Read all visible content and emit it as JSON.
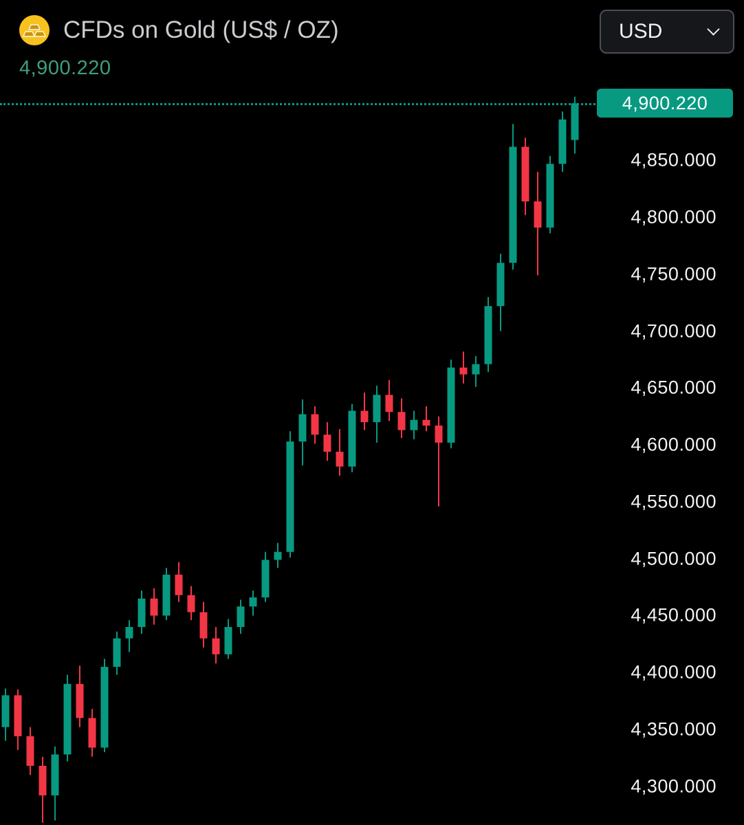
{
  "header": {
    "title": "CFDs on Gold (US$ / OZ)",
    "icon": "gold-bars-icon",
    "price_display": "4,900.220",
    "currency_selector": {
      "selected_option": "USD"
    }
  },
  "colors": {
    "background": "#000000",
    "up": "#089981",
    "down": "#f23645",
    "title_text": "#cacccf",
    "header_price_text": "#3f9e7d",
    "axis_text": "#f1f2f4",
    "badge_background": "#089981",
    "badge_text": "#ffffff",
    "icon_yellow": "#f7c21e"
  },
  "price_scale": {
    "current_price_label": "4,900.220",
    "ticks": [
      {
        "value": 4850,
        "label": "4,850.000"
      },
      {
        "value": 4800,
        "label": "4,800.000"
      },
      {
        "value": 4750,
        "label": "4,750.000"
      },
      {
        "value": 4700,
        "label": "4,700.000"
      },
      {
        "value": 4650,
        "label": "4,650.000"
      },
      {
        "value": 4600,
        "label": "4,600.000"
      },
      {
        "value": 4550,
        "label": "4,550.000"
      },
      {
        "value": 4500,
        "label": "4,500.000"
      },
      {
        "value": 4450,
        "label": "4,450.000"
      },
      {
        "value": 4400,
        "label": "4,400.000"
      },
      {
        "value": 4350,
        "label": "4,350.000"
      },
      {
        "value": 4300,
        "label": "4,300.000"
      }
    ]
  },
  "chart_data": {
    "type": "candlestick",
    "title": "CFDs on Gold (US$ / OZ)",
    "instrument": "CFDs on Gold",
    "unit": "US$ / OZ",
    "currency": "USD",
    "current_price": 4900.22,
    "ylim": [
      4266,
      4991
    ],
    "y_ticks": [
      4300,
      4350,
      4400,
      4450,
      4500,
      4550,
      4600,
      4650,
      4700,
      4750,
      4800,
      4850
    ],
    "price_axis_side": "right",
    "grid": false,
    "up_color": "#089981",
    "down_color": "#f23645",
    "columns": [
      "open",
      "high",
      "low",
      "close"
    ],
    "candles": [
      [
        4352,
        4386,
        4340,
        4380
      ],
      [
        4380,
        4385,
        4332,
        4344
      ],
      [
        4344,
        4352,
        4310,
        4318
      ],
      [
        4318,
        4326,
        4268,
        4292
      ],
      [
        4292,
        4335,
        4270,
        4328
      ],
      [
        4328,
        4398,
        4322,
        4390
      ],
      [
        4390,
        4406,
        4352,
        4360
      ],
      [
        4360,
        4368,
        4326,
        4334
      ],
      [
        4334,
        4412,
        4330,
        4405
      ],
      [
        4405,
        4436,
        4398,
        4430
      ],
      [
        4430,
        4446,
        4418,
        4440
      ],
      [
        4440,
        4472,
        4434,
        4465
      ],
      [
        4465,
        4474,
        4442,
        4450
      ],
      [
        4450,
        4492,
        4446,
        4486
      ],
      [
        4486,
        4497,
        4462,
        4468
      ],
      [
        4468,
        4476,
        4446,
        4453
      ],
      [
        4453,
        4462,
        4422,
        4430
      ],
      [
        4430,
        4440,
        4408,
        4416
      ],
      [
        4416,
        4447,
        4412,
        4440
      ],
      [
        4440,
        4464,
        4434,
        4458
      ],
      [
        4458,
        4472,
        4450,
        4466
      ],
      [
        4466,
        4506,
        4462,
        4499
      ],
      [
        4499,
        4514,
        4492,
        4506
      ],
      [
        4506,
        4612,
        4501,
        4603
      ],
      [
        4603,
        4640,
        4582,
        4627
      ],
      [
        4627,
        4634,
        4601,
        4609
      ],
      [
        4609,
        4620,
        4586,
        4594
      ],
      [
        4594,
        4614,
        4573,
        4581
      ],
      [
        4581,
        4636,
        4576,
        4630
      ],
      [
        4630,
        4646,
        4613,
        4620
      ],
      [
        4620,
        4652,
        4602,
        4644
      ],
      [
        4644,
        4657,
        4621,
        4629
      ],
      [
        4629,
        4641,
        4606,
        4613
      ],
      [
        4613,
        4630,
        4605,
        4622
      ],
      [
        4622,
        4634,
        4612,
        4617
      ],
      [
        4617,
        4625,
        4546,
        4602
      ],
      [
        4602,
        4675,
        4597,
        4668
      ],
      [
        4668,
        4682,
        4654,
        4662
      ],
      [
        4662,
        4678,
        4651,
        4671
      ],
      [
        4671,
        4730,
        4664,
        4722
      ],
      [
        4722,
        4768,
        4700,
        4760
      ],
      [
        4760,
        4882,
        4754,
        4862
      ],
      [
        4862,
        4870,
        4802,
        4814
      ],
      [
        4814,
        4840,
        4749,
        4791
      ],
      [
        4791,
        4854,
        4786,
        4847
      ],
      [
        4847,
        4893,
        4840,
        4886
      ],
      [
        4868,
        4906,
        4856,
        4900.22
      ]
    ]
  }
}
